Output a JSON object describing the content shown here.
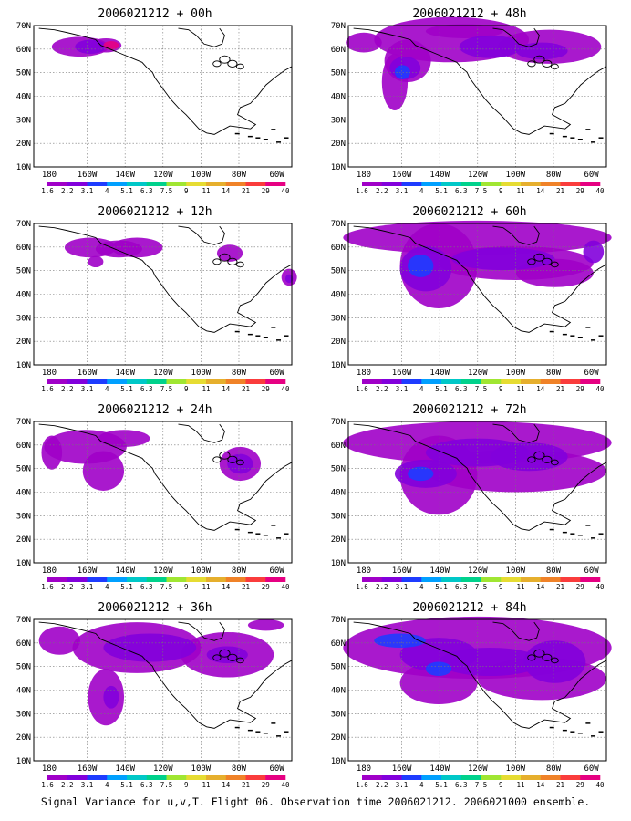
{
  "lat_labels": [
    "70N",
    "60N",
    "50N",
    "40N",
    "30N",
    "20N",
    "10N"
  ],
  "lon_labels": [
    "180",
    "160W",
    "140W",
    "120W",
    "100W",
    "80W",
    "60W"
  ],
  "colorbar": {
    "colors": [
      "#a000c8",
      "#8200dc",
      "#1e3cff",
      "#00a0ff",
      "#00c8c8",
      "#00d28c",
      "#a0e632",
      "#e6dc32",
      "#e6af2d",
      "#f08228",
      "#fa3c3c",
      "#e60082"
    ],
    "labels": [
      "1.6",
      "2.2",
      "3.1",
      "4",
      "5.1",
      "6.3",
      "7.5",
      "9",
      "11",
      "14",
      "21",
      "29",
      "40"
    ]
  },
  "panels": [
    {
      "title": "2006021212 + 00h"
    },
    {
      "title": "2006021212 + 48h"
    },
    {
      "title": "2006021212 + 12h"
    },
    {
      "title": "2006021212 + 60h"
    },
    {
      "title": "2006021212 + 24h"
    },
    {
      "title": "2006021212 + 72h"
    },
    {
      "title": "2006021212 + 36h"
    },
    {
      "title": "2006021212 + 84h"
    }
  ],
  "caption": "Signal Variance for u,v,T. Flight 06. Observation time 2006021212. 2006021000 ensemble."
}
